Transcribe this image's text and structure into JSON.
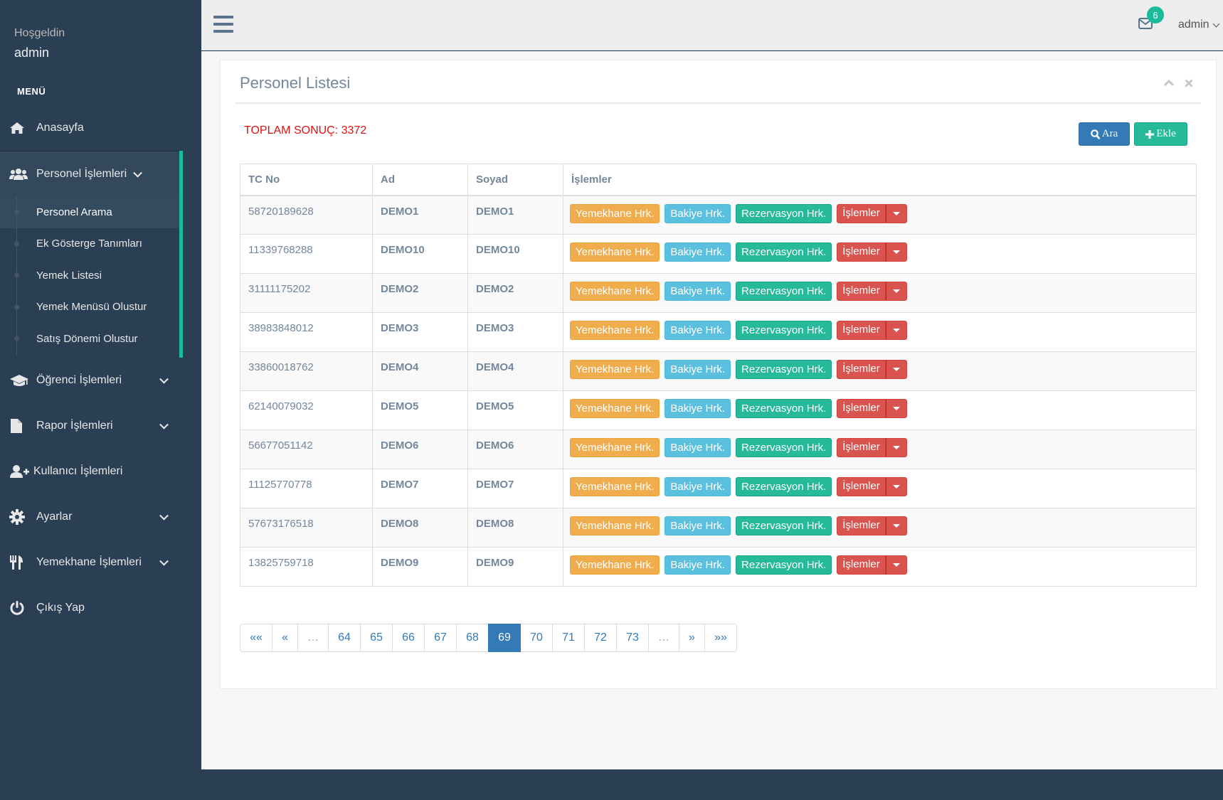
{
  "sidebar": {
    "welcome": "Hoşgeldin",
    "user": "admin",
    "menu_title": "MENÜ",
    "items": [
      {
        "label": "Anasayfa",
        "icon": "home-icon"
      },
      {
        "label": "Personel İşlemleri",
        "icon": "users-icon"
      },
      {
        "label": "Öğrenci İşlemleri",
        "icon": "graduation-cap-icon"
      },
      {
        "label": "Rapor İşlemleri",
        "icon": "file-icon"
      },
      {
        "label": "Kullanıcı İşlemleri",
        "icon": "user-plus-icon"
      },
      {
        "label": "Ayarlar",
        "icon": "gear-icon"
      },
      {
        "label": "Yemekhane İşlemleri",
        "icon": "cutlery-icon"
      },
      {
        "label": "Çıkış Yap",
        "icon": "power-icon"
      }
    ],
    "sub_items": [
      {
        "label": "Personel Arama"
      },
      {
        "label": "Ek Gösterge Tanımları"
      },
      {
        "label": "Yemek Listesi"
      },
      {
        "label": "Yemek Menüsü Olustur"
      },
      {
        "label": "Satış Dönemi Olustur"
      }
    ]
  },
  "topbar": {
    "notification_count": "6",
    "user": "admin"
  },
  "panel": {
    "title": "Personel Listesi",
    "total": "TOPLAM SONUÇ: 3372",
    "search_label": "Ara",
    "add_label": "Ekle"
  },
  "table": {
    "headers": [
      "TC No",
      "Ad",
      "Soyad",
      "İşlemler"
    ],
    "actions": {
      "meal": "Yemekhane Hrk.",
      "balance": "Bakiye Hrk.",
      "reservation": "Rezervasyon Hrk.",
      "ops": "İşlemler"
    },
    "rows": [
      {
        "tc": "58720189628",
        "ad": "DEMO1",
        "soyad": "DEMO1"
      },
      {
        "tc": "11339768288",
        "ad": "DEMO10",
        "soyad": "DEMO10"
      },
      {
        "tc": "31111175202",
        "ad": "DEMO2",
        "soyad": "DEMO2"
      },
      {
        "tc": "38983848012",
        "ad": "DEMO3",
        "soyad": "DEMO3"
      },
      {
        "tc": "33860018762",
        "ad": "DEMO4",
        "soyad": "DEMO4"
      },
      {
        "tc": "62140079032",
        "ad": "DEMO5",
        "soyad": "DEMO5"
      },
      {
        "tc": "56677051142",
        "ad": "DEMO6",
        "soyad": "DEMO6"
      },
      {
        "tc": "11125770778",
        "ad": "DEMO7",
        "soyad": "DEMO7"
      },
      {
        "tc": "57673176518",
        "ad": "DEMO8",
        "soyad": "DEMO8"
      },
      {
        "tc": "13825759718",
        "ad": "DEMO9",
        "soyad": "DEMO9"
      }
    ]
  },
  "pagination": {
    "pages": [
      "««",
      "«",
      "…",
      "64",
      "65",
      "66",
      "67",
      "68",
      "69",
      "70",
      "71",
      "72",
      "73",
      "…",
      "»",
      "»»"
    ],
    "current": "69"
  },
  "colors": {
    "sidebar": "#2a3f54",
    "accent": "#1abb9c",
    "primary": "#337ab7",
    "warning": "#f0ad4e",
    "info": "#5bc0de",
    "success": "#26b99a",
    "danger": "#d9534f"
  }
}
